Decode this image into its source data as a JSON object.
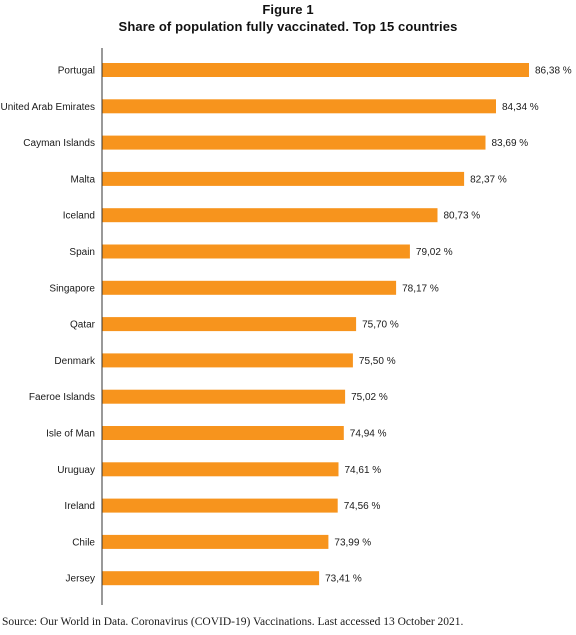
{
  "figure_label": "Figure 1",
  "source": "Source: Our World in Data. Coronavirus (COVID-19) Vaccinations. Last accessed 13 October 2021.",
  "colors": {
    "bar": "#f7941d",
    "axis": "#333333"
  },
  "chart_data": {
    "type": "bar",
    "orientation": "horizontal",
    "title": "Share of population fully vaccinated. Top 15 countries",
    "categories": [
      "Portugal",
      "United Arab Emirates",
      "Cayman Islands",
      "Malta",
      "Iceland",
      "Spain",
      "Singapore",
      "Qatar",
      "Denmark",
      "Faeroe Islands",
      "Isle of Man",
      "Uruguay",
      "Ireland",
      "Chile",
      "Jersey"
    ],
    "values": [
      86.38,
      84.34,
      83.69,
      82.37,
      80.73,
      79.02,
      78.17,
      75.7,
      75.5,
      75.02,
      74.94,
      74.61,
      74.56,
      73.99,
      73.41
    ],
    "value_labels": [
      "86,38 %",
      "84,34 %",
      "83,69 %",
      "82,37 %",
      "80,73 %",
      "79,02 %",
      "78,17 %",
      "75,70 %",
      "75,50 %",
      "75,02 %",
      "74,94 %",
      "74,61 %",
      "74,56 %",
      "73,99 %",
      "73,41 %"
    ],
    "xlim": [
      60,
      86.38
    ],
    "grid": false,
    "legend": "none"
  }
}
